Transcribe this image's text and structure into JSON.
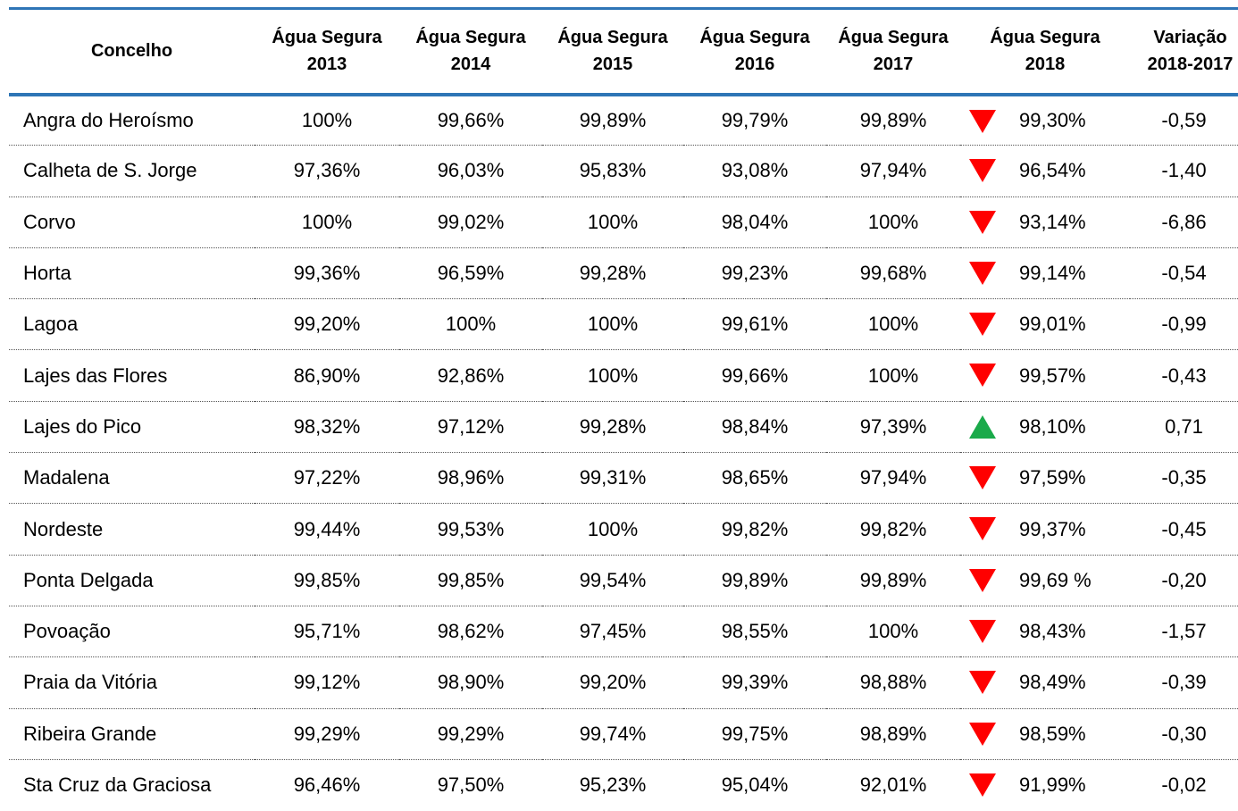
{
  "table": {
    "header": [
      "Concelho",
      "Água Segura 2013",
      "Água Segura 2014",
      "Água Segura 2015",
      "Água Segura 2016",
      "Água Segura 2017",
      "Água Segura 2018",
      "Variação 2018-2017"
    ],
    "rows": [
      [
        "Angra do Heroísmo",
        "100%",
        "99,66%",
        "99,89%",
        "99,79%",
        "99,89%",
        "99,30%",
        "-0,59"
      ],
      [
        "Calheta de S. Jorge",
        "97,36%",
        "96,03%",
        "95,83%",
        "93,08%",
        "97,94%",
        "96,54%",
        "-1,40"
      ],
      [
        "Corvo",
        "100%",
        "99,02%",
        "100%",
        "98,04%",
        "100%",
        "93,14%",
        "-6,86"
      ],
      [
        "Horta",
        "99,36%",
        "96,59%",
        "99,28%",
        "99,23%",
        "99,68%",
        "99,14%",
        "-0,54"
      ],
      [
        "Lagoa",
        "99,20%",
        "100%",
        "100%",
        "99,61%",
        "100%",
        "99,01%",
        "-0,99"
      ],
      [
        "Lajes das Flores",
        "86,90%",
        "92,86%",
        "100%",
        "99,66%",
        "100%",
        "99,57%",
        "-0,43"
      ],
      [
        "Lajes do Pico",
        "98,32%",
        "97,12%",
        "99,28%",
        "98,84%",
        "97,39%",
        "98,10%",
        "0,71"
      ],
      [
        "Madalena",
        "97,22%",
        "98,96%",
        "99,31%",
        "98,65%",
        "97,94%",
        "97,59%",
        "-0,35"
      ],
      [
        "Nordeste",
        "99,44%",
        "99,53%",
        "100%",
        "99,82%",
        "99,82%",
        "99,37%",
        "-0,45"
      ],
      [
        "Ponta Delgada",
        "99,85%",
        "99,85%",
        "99,54%",
        "99,89%",
        "99,89%",
        "99,69 %",
        "-0,20"
      ],
      [
        "Povoação",
        "95,71%",
        "98,62%",
        "97,45%",
        "98,55%",
        "100%",
        "98,43%",
        "-1,57"
      ],
      [
        "Praia da Vitória",
        "99,12%",
        "98,90%",
        "99,20%",
        "99,39%",
        "98,88%",
        "98,49%",
        "-0,39"
      ],
      [
        "Ribeira Grande",
        "99,29%",
        "99,29%",
        "99,74%",
        "99,75%",
        "98,89%",
        "98,59%",
        "-0,30"
      ],
      [
        "Sta Cruz da Graciosa",
        "96,46%",
        "97,50%",
        "95,23%",
        "95,04%",
        "92,01%",
        "91,99%",
        "-0,02"
      ]
    ]
  }
}
